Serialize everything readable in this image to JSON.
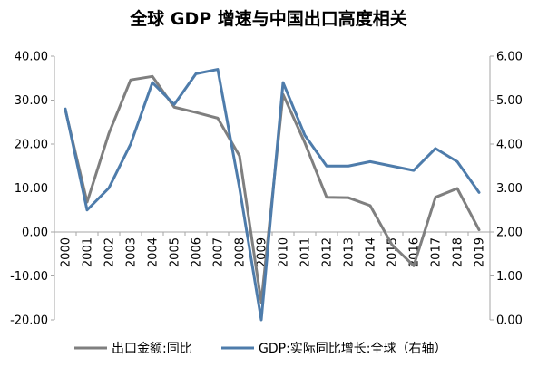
{
  "chart_data": {
    "type": "line",
    "title": "全球 GDP 增速与中国出口高度相关",
    "categories": [
      "2000",
      "2001",
      "2002",
      "2003",
      "2004",
      "2005",
      "2006",
      "2007",
      "2008",
      "2009",
      "2010",
      "2011",
      "2012",
      "2013",
      "2014",
      "2015",
      "2016",
      "2017",
      "2018",
      "2019"
    ],
    "y_left": {
      "ylim": [
        -20,
        40
      ],
      "ticks": [
        "-20.00",
        "-10.00",
        "0.00",
        "10.00",
        "20.00",
        "30.00",
        "40.00"
      ],
      "tick_values": [
        -20,
        -10,
        0,
        10,
        20,
        30,
        40
      ]
    },
    "y_right": {
      "ylim": [
        0,
        6
      ],
      "ticks": [
        "0.00",
        "1.00",
        "2.00",
        "3.00",
        "4.00",
        "5.00",
        "6.00"
      ],
      "tick_values": [
        0,
        1,
        2,
        3,
        4,
        5,
        6
      ]
    },
    "series": [
      {
        "name": "出口金额:同比",
        "axis": "left",
        "color": "#7f7f7f",
        "values": [
          27.8,
          6.8,
          22.4,
          34.6,
          35.4,
          28.4,
          27.2,
          25.9,
          17.3,
          -16.0,
          31.3,
          20.3,
          7.9,
          7.8,
          6.0,
          -2.9,
          -7.7,
          7.9,
          9.9,
          0.5
        ]
      },
      {
        "name": "GDP:实际同比增长:全球（右轴）",
        "axis": "right",
        "color": "#4e7cab",
        "values": [
          4.8,
          2.5,
          3.0,
          4.0,
          5.4,
          4.9,
          5.6,
          5.7,
          3.0,
          0.0,
          5.4,
          4.2,
          3.5,
          3.5,
          3.6,
          3.5,
          3.4,
          3.9,
          3.6,
          2.9
        ]
      }
    ],
    "legend_position": "bottom",
    "grid": false
  }
}
